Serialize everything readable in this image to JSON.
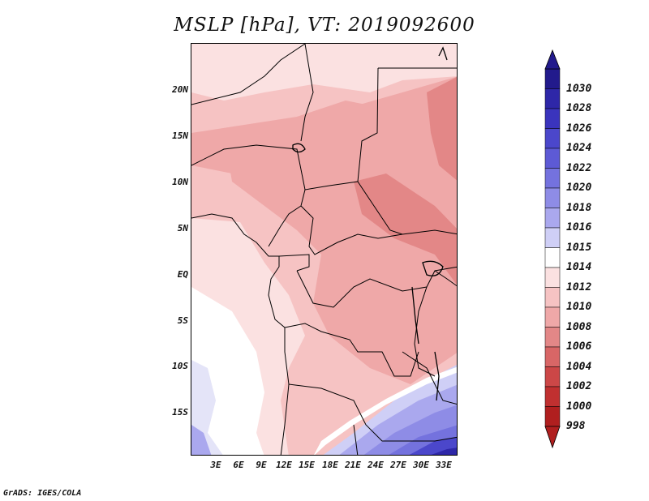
{
  "title": "MSLP [hPa], VT: 2019092600",
  "credit": "GrADS: IGES/COLA",
  "lat_labels": [
    "20N",
    "15N",
    "10N",
    "5N",
    "EQ",
    "5S",
    "10S",
    "15S"
  ],
  "lon_labels": [
    "3E",
    "6E",
    "9E",
    "12E",
    "15E",
    "18E",
    "21E",
    "24E",
    "27E",
    "30E",
    "33E"
  ],
  "colorbar": {
    "levels": [
      "1030",
      "1028",
      "1026",
      "1024",
      "1022",
      "1020",
      "1018",
      "1016",
      "1015",
      "1014",
      "1012",
      "1010",
      "1008",
      "1006",
      "1004",
      "1002",
      "1000",
      "998"
    ],
    "colors": [
      "#221a8c",
      "#2e27a8",
      "#3a34bd",
      "#4b47cb",
      "#5d5ad5",
      "#7472de",
      "#8e8ce6",
      "#aaa8ee",
      "#cfcff6",
      "#ffffff",
      "#fbe1e1",
      "#f6c3c3",
      "#efa8a8",
      "#e38787",
      "#d86666",
      "#cc4747",
      "#c03030",
      "#b01f1f"
    ]
  }
}
